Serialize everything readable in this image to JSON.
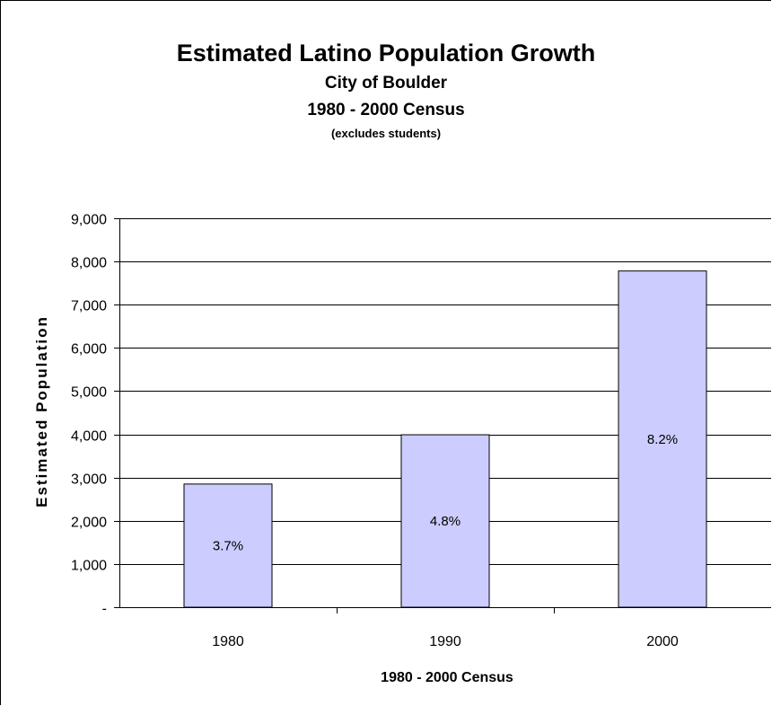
{
  "chart_data": {
    "type": "bar",
    "title": "Estimated Latino Population Growth",
    "subtitle_lines": [
      "City of Boulder",
      "1980 - 2000 Census",
      "(excludes students)"
    ],
    "categories": [
      "1980",
      "1990",
      "2000"
    ],
    "values": [
      2850,
      3990,
      7780
    ],
    "data_labels": [
      "3.7%",
      "4.8%",
      "8.2%"
    ],
    "xlabel": "1980 - 2000 Census",
    "ylabel": "Estimated Population",
    "ylim": [
      0,
      9000
    ],
    "ytick_values": [
      0,
      1000,
      2000,
      3000,
      4000,
      5000,
      6000,
      7000,
      8000,
      9000
    ],
    "ytick_labels": [
      "-",
      "1,000",
      "2,000",
      "3,000",
      "4,000",
      "5,000",
      "6,000",
      "7,000",
      "8,000",
      "9,000"
    ],
    "bar_color": "#ccccff",
    "grid": true,
    "legend": "none"
  }
}
